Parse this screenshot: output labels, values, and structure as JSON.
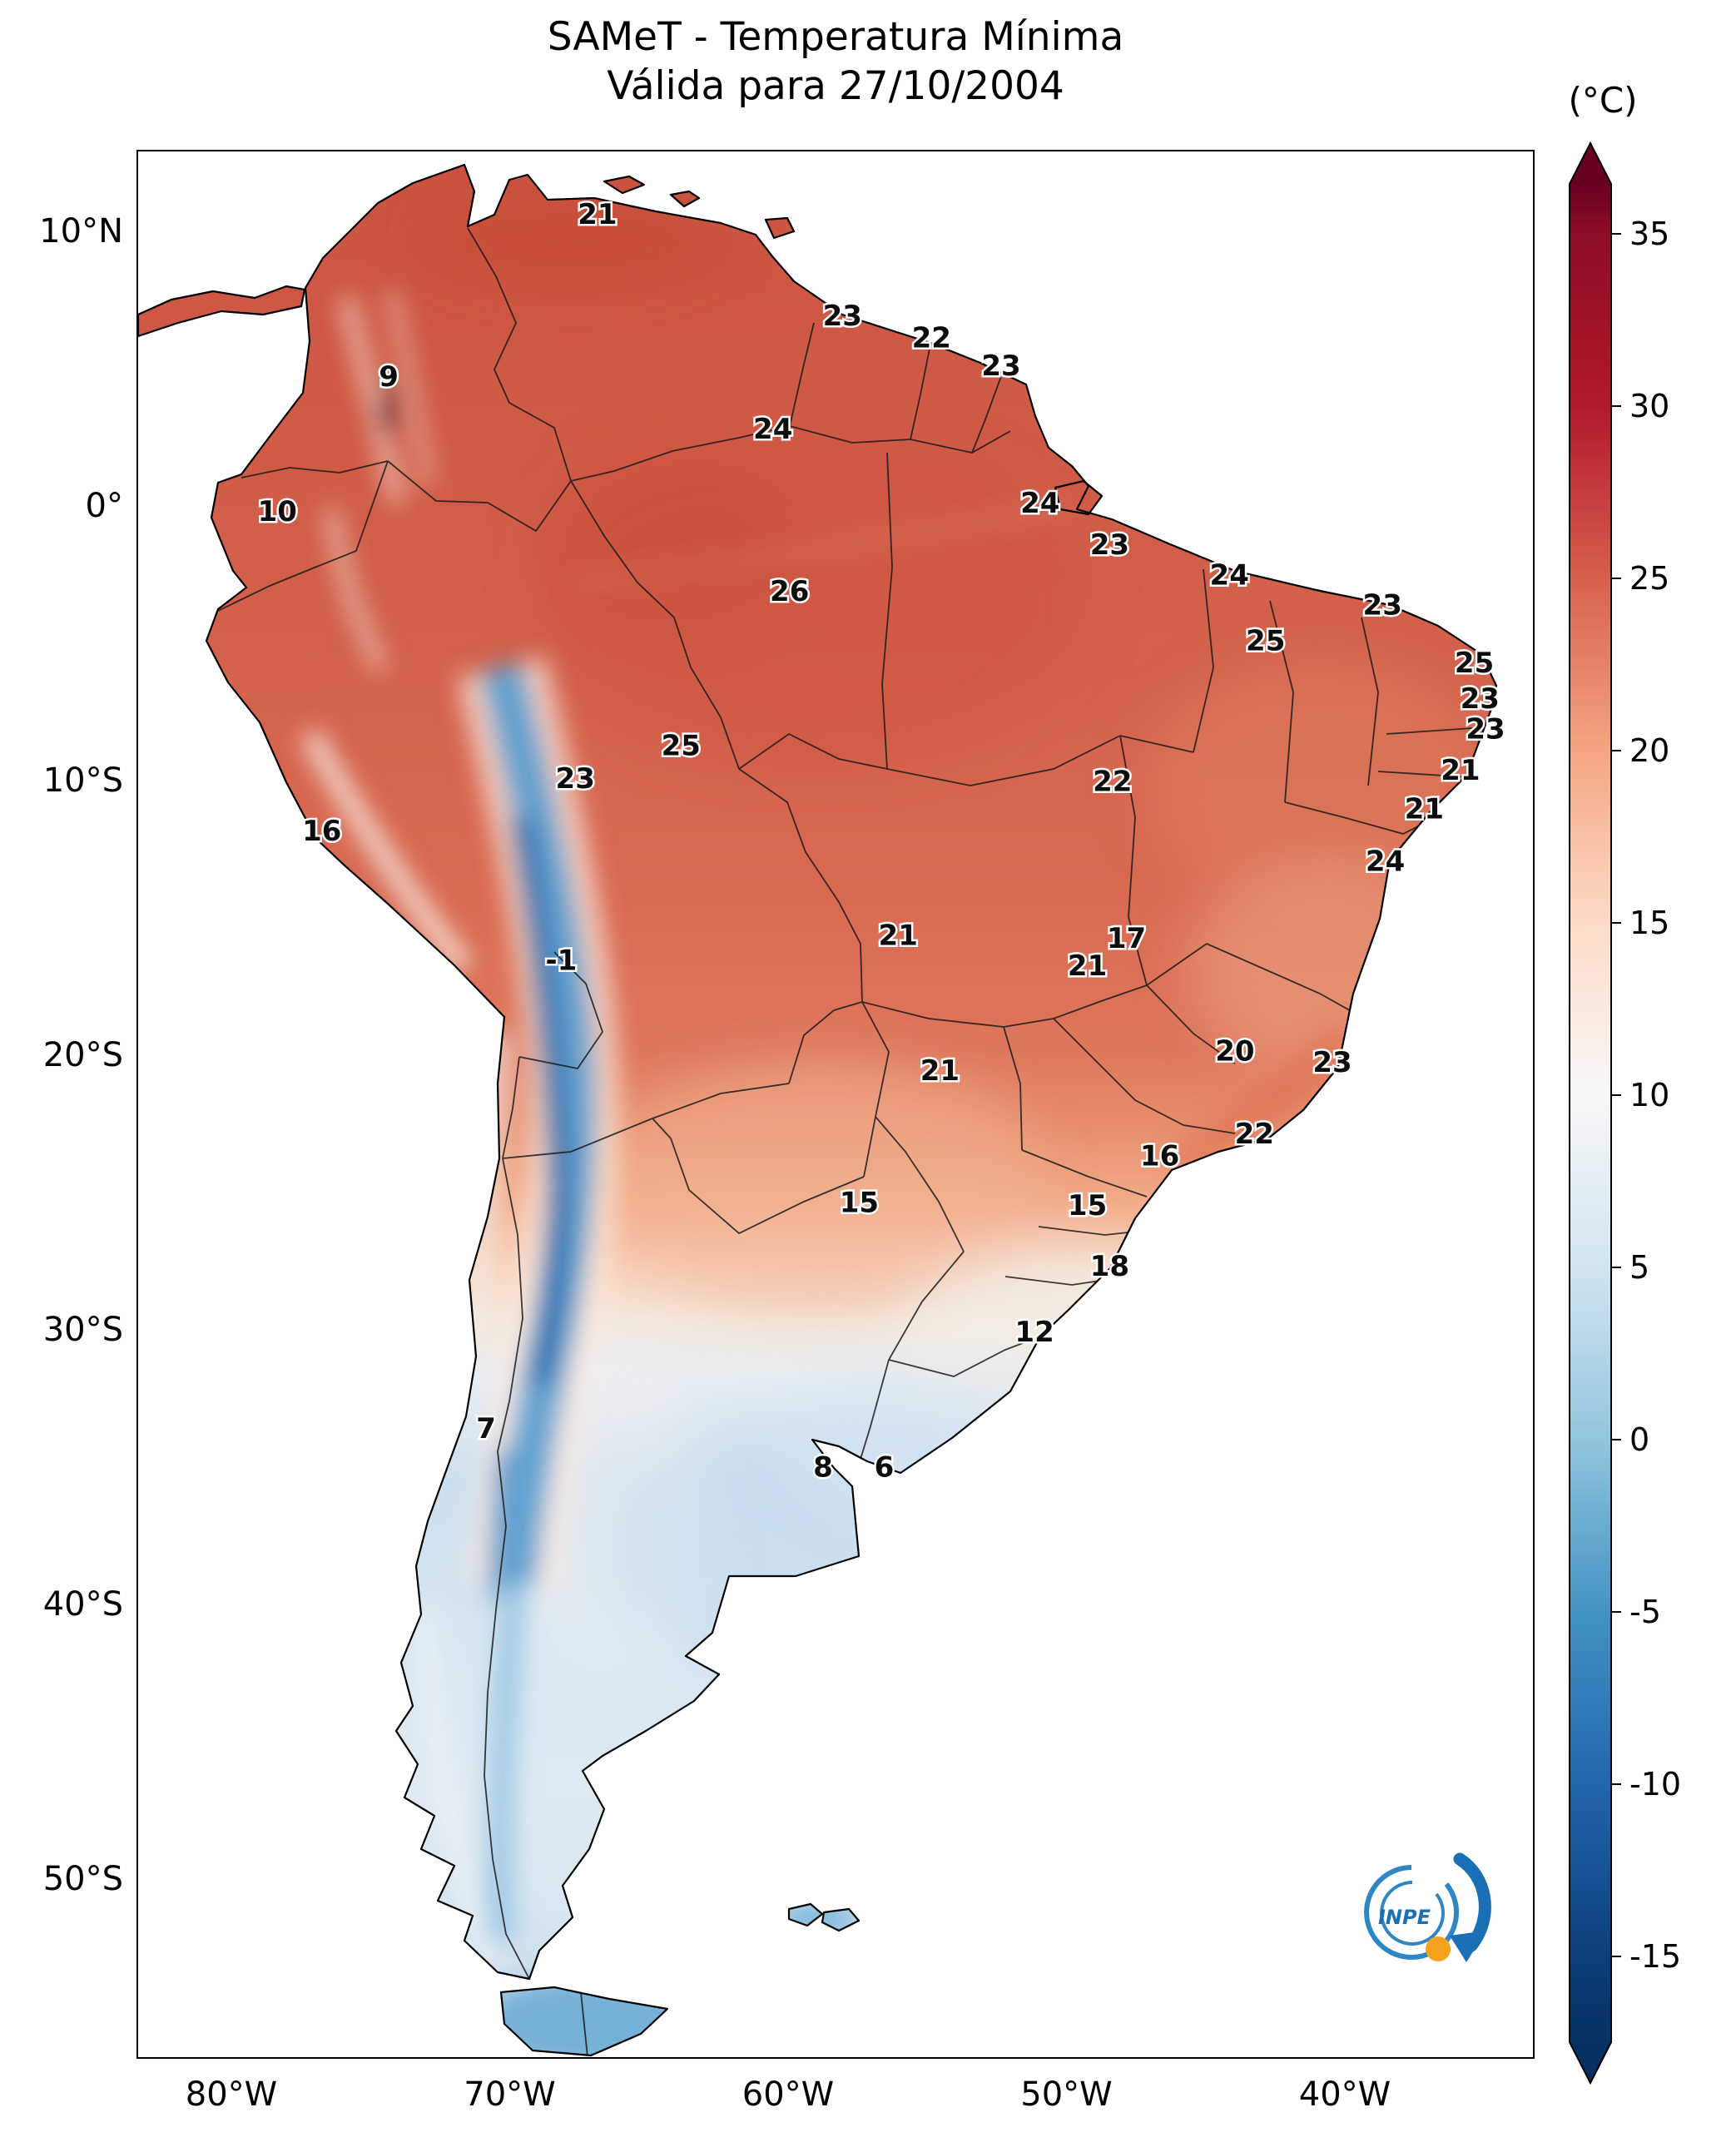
{
  "title": {
    "line1": "SAMeT - Temperatura Mínima",
    "line2": "Válida para 27/10/2004"
  },
  "colorbar": {
    "unit_label": "(°C)",
    "ticks": [
      "35",
      "30",
      "25",
      "20",
      "15",
      "10",
      "5",
      "0",
      "-5",
      "-10",
      "-15"
    ],
    "color_stops": {
      "35": "#8c0d25",
      "30": "#b2182b",
      "25": "#d6604d",
      "20": "#f4a582",
      "15": "#fddbc7",
      "10": "#f7f7f7",
      "5": "#d1e5f0",
      "0": "#92c5de",
      "-5": "#4393c3",
      "-10": "#2166ac",
      "-15": "#0d3e7a",
      "over": "#67001f",
      "under": "#053061"
    }
  },
  "axes": {
    "lat": [
      "10°N",
      "0°",
      "10°S",
      "20°S",
      "30°S",
      "40°S",
      "50°S"
    ],
    "lon": [
      "80°W",
      "70°W",
      "60°W",
      "50°W",
      "40°W"
    ]
  },
  "logo": {
    "text": "INPE"
  },
  "chart_data": {
    "type": "heatmap",
    "title": "SAMeT - Temperatura Mínima",
    "subtitle": "Válida para 27/10/2004",
    "variable": "Temperatura Mínima",
    "date": "27/10/2004",
    "unit": "°C",
    "colormap": "RdBu_r",
    "colorbar_ticks": [
      35,
      30,
      25,
      20,
      15,
      10,
      5,
      0,
      -5,
      -10,
      -15
    ],
    "lon_range": [
      -83.4,
      -33.3
    ],
    "lat_range": [
      -56.2,
      13.0
    ],
    "lon_ticks": [
      -80,
      -70,
      -60,
      -50,
      -40
    ],
    "lat_ticks": [
      10,
      0,
      -10,
      -20,
      -30,
      -40,
      -50
    ],
    "grid": false,
    "legend_position": "right-colorbar",
    "stations": [
      {
        "lon": -66.9,
        "lat": 10.7,
        "value": "21"
      },
      {
        "lon": -58.1,
        "lat": 7.0,
        "value": "23"
      },
      {
        "lon": -54.9,
        "lat": 6.2,
        "value": "22"
      },
      {
        "lon": -52.4,
        "lat": 5.2,
        "value": "23"
      },
      {
        "lon": -60.6,
        "lat": 2.9,
        "value": "24"
      },
      {
        "lon": -74.4,
        "lat": 4.8,
        "value": "9"
      },
      {
        "lon": -51.0,
        "lat": 0.2,
        "value": "24"
      },
      {
        "lon": -48.5,
        "lat": -1.3,
        "value": "23"
      },
      {
        "lon": -44.2,
        "lat": -2.4,
        "value": "24"
      },
      {
        "lon": -78.4,
        "lat": -0.1,
        "value": "10"
      },
      {
        "lon": -60.0,
        "lat": -3.0,
        "value": "26"
      },
      {
        "lon": -42.9,
        "lat": -4.8,
        "value": "25"
      },
      {
        "lon": -38.7,
        "lat": -3.5,
        "value": "23"
      },
      {
        "lon": -35.4,
        "lat": -5.6,
        "value": "25"
      },
      {
        "lon": -35.2,
        "lat": -6.9,
        "value": "23"
      },
      {
        "lon": -35.0,
        "lat": -8.0,
        "value": "23"
      },
      {
        "lon": -63.9,
        "lat": -8.6,
        "value": "25"
      },
      {
        "lon": -67.7,
        "lat": -9.8,
        "value": "23"
      },
      {
        "lon": -48.4,
        "lat": -9.9,
        "value": "22"
      },
      {
        "lon": -35.9,
        "lat": -9.5,
        "value": "21"
      },
      {
        "lon": -37.2,
        "lat": -10.9,
        "value": "21"
      },
      {
        "lon": -76.8,
        "lat": -11.7,
        "value": "16"
      },
      {
        "lon": -38.6,
        "lat": -12.8,
        "value": "24"
      },
      {
        "lon": -68.2,
        "lat": -16.4,
        "value": "-1"
      },
      {
        "lon": -56.1,
        "lat": -15.5,
        "value": "21"
      },
      {
        "lon": -47.9,
        "lat": -15.6,
        "value": "17"
      },
      {
        "lon": -49.3,
        "lat": -16.6,
        "value": "21"
      },
      {
        "lon": -54.6,
        "lat": -20.4,
        "value": "21"
      },
      {
        "lon": -44.0,
        "lat": -19.7,
        "value": "20"
      },
      {
        "lon": -40.5,
        "lat": -20.1,
        "value": "23"
      },
      {
        "lon": -46.7,
        "lat": -23.5,
        "value": "16"
      },
      {
        "lon": -43.3,
        "lat": -22.7,
        "value": "22"
      },
      {
        "lon": -57.5,
        "lat": -25.2,
        "value": "15"
      },
      {
        "lon": -49.3,
        "lat": -25.3,
        "value": "15"
      },
      {
        "lon": -48.5,
        "lat": -27.5,
        "value": "18"
      },
      {
        "lon": -51.2,
        "lat": -29.9,
        "value": "12"
      },
      {
        "lon": -70.9,
        "lat": -33.4,
        "value": "7"
      },
      {
        "lon": -58.8,
        "lat": -34.8,
        "value": "8"
      },
      {
        "lon": -56.6,
        "lat": -34.8,
        "value": "6"
      }
    ]
  }
}
